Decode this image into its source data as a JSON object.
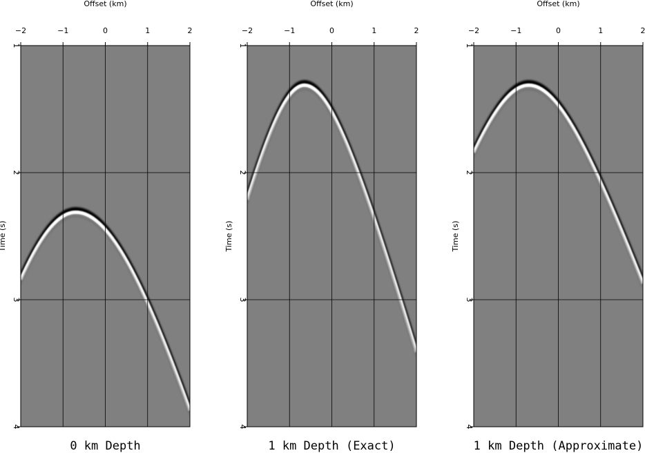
{
  "chart_data": [
    {
      "type": "heatmap",
      "title": "0 km Depth",
      "xlabel": "Offset (km)",
      "ylabel": "Time (s)",
      "xlim": [
        -2,
        2
      ],
      "ylim": [
        1,
        4
      ],
      "xticks": [
        "−2",
        "−1",
        "0",
        "1",
        "2"
      ],
      "yticks": [
        "1",
        "2",
        "3",
        "4"
      ],
      "grid": true,
      "event": {
        "apex_offset": -0.7,
        "apex_time": 2.3,
        "left_edge_time": 2.83,
        "right_edge_time": 3.86
      }
    },
    {
      "type": "heatmap",
      "title": "1 km Depth (Exact)",
      "xlabel": "Offset (km)",
      "ylabel": "Time (s)",
      "xlim": [
        -2,
        2
      ],
      "ylim": [
        1,
        4
      ],
      "xticks": [
        "−2",
        "−1",
        "0",
        "1",
        "2"
      ],
      "yticks": [
        "1",
        "2",
        "3",
        "4"
      ],
      "grid": true,
      "event": {
        "apex_offset": -0.65,
        "apex_time": 1.3,
        "left_edge_time": 2.2,
        "right_edge_time": 3.4
      }
    },
    {
      "type": "heatmap",
      "title": "1 km Depth (Approximate)",
      "xlabel": "Offset (km)",
      "ylabel": "Time (s)",
      "xlim": [
        -2,
        2
      ],
      "ylim": [
        1,
        4
      ],
      "xticks": [
        "−2",
        "−1",
        "0",
        "1",
        "2"
      ],
      "yticks": [
        "1",
        "2",
        "3",
        "4"
      ],
      "grid": true,
      "event": {
        "apex_offset": -0.7,
        "apex_time": 1.3,
        "left_edge_time": 1.83,
        "right_edge_time": 2.86
      }
    }
  ],
  "colors": {
    "background": "#808080",
    "grid": "#000000",
    "peak": "#ffffff",
    "trough": "#000000"
  }
}
